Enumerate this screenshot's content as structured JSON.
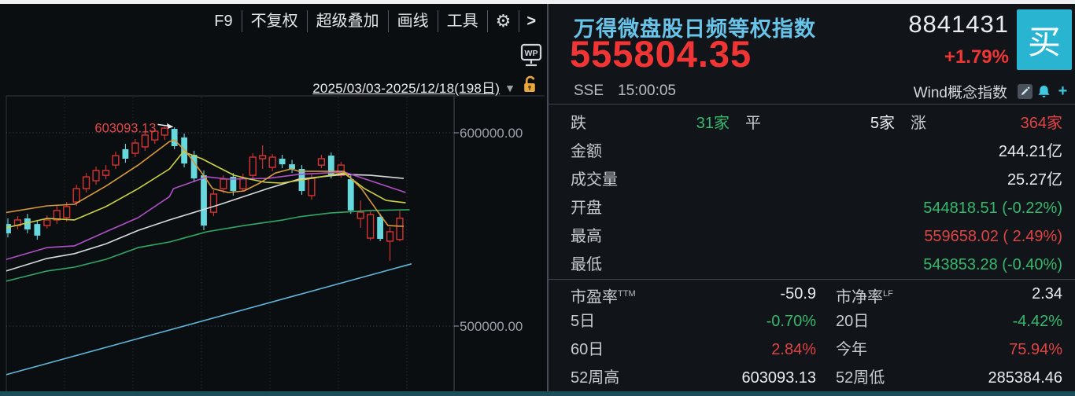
{
  "palette": {
    "bg": "#0b0e11",
    "up_red": "#e04343",
    "down_green": "#35b96d",
    "price_red": "#f13434",
    "title_blue": "#68c4e9",
    "accent_cyan": "#29b4d2"
  },
  "toolbar": {
    "items": [
      "F9",
      "不复权",
      "超级叠加",
      "画线",
      "工具"
    ],
    "gear_icon": "⚙",
    "more_label": ">",
    "wp_badge": "WP"
  },
  "chart_header": {
    "date_range": "2025/03/03-2025/12/18(198日)",
    "dropdown_icon": "▼"
  },
  "chart_data": {
    "type": "candlestick",
    "date_range": "2025/03/03-2025/12/18(198日)",
    "y_axis": {
      "ticks": [
        {
          "value": 600000,
          "label": "600000.00"
        },
        {
          "value": 500000,
          "label": "500000.00"
        }
      ]
    },
    "annotation": {
      "text": "603093.13",
      "value": 603093.13,
      "anchor_index": 16
    },
    "style": {
      "up": "#d93232",
      "down": "#66d9de",
      "bg": "#0b0e11"
    },
    "candles": [
      [
        552800,
        555700,
        545900,
        548000
      ],
      [
        552000,
        556900,
        550000,
        554900
      ],
      [
        555700,
        558100,
        548000,
        550000
      ],
      [
        552800,
        554900,
        544700,
        546800
      ],
      [
        552000,
        557300,
        550400,
        554900
      ],
      [
        554900,
        562200,
        552800,
        559800
      ],
      [
        556100,
        564200,
        554100,
        561800
      ],
      [
        564200,
        573100,
        562200,
        571100
      ],
      [
        571100,
        579200,
        569100,
        577200
      ],
      [
        575200,
        582500,
        573100,
        580500
      ],
      [
        578000,
        583300,
        576000,
        580500
      ],
      [
        583300,
        590200,
        581300,
        588200
      ],
      [
        591500,
        594300,
        584500,
        586600
      ],
      [
        589400,
        596700,
        587400,
        594700
      ],
      [
        592700,
        600800,
        590700,
        598800
      ],
      [
        596300,
        601600,
        594300,
        600800
      ],
      [
        598800,
        603093.13,
        596300,
        602400
      ],
      [
        602000,
        602800,
        591500,
        593100
      ],
      [
        597600,
        599600,
        582100,
        584100
      ],
      [
        588600,
        590700,
        574400,
        576400
      ],
      [
        578000,
        580500,
        549600,
        552000
      ],
      [
        558900,
        570300,
        556900,
        568300
      ],
      [
        571100,
        578000,
        568700,
        576000
      ],
      [
        577200,
        579200,
        567500,
        569900
      ],
      [
        571100,
        578900,
        569500,
        576400
      ],
      [
        578000,
        589400,
        576000,
        587400
      ],
      [
        586600,
        593500,
        581300,
        588200
      ],
      [
        582100,
        589000,
        580100,
        587400
      ],
      [
        586600,
        588600,
        581700,
        583700
      ],
      [
        583700,
        586000,
        579200,
        581300
      ],
      [
        581300,
        583300,
        567900,
        569900
      ],
      [
        567500,
        578500,
        565400,
        576400
      ],
      [
        583300,
        588600,
        581700,
        586600
      ],
      [
        588200,
        589800,
        576400,
        578000
      ],
      [
        578000,
        584900,
        576800,
        583300
      ],
      [
        576000,
        578000,
        558100,
        559800
      ],
      [
        555700,
        565000,
        550800,
        558900
      ],
      [
        545500,
        559400,
        544300,
        557700
      ],
      [
        556500,
        558100,
        543900,
        545100
      ],
      [
        543900,
        551200,
        533700,
        548800
      ],
      [
        544818.51,
        559658.02,
        543853.28,
        555804.35
      ]
    ],
    "overlays": [
      {
        "name": "ma-longterm",
        "color": "#5fb7dc",
        "points": [
          [
            -0.8,
            474000
          ],
          [
            41.2,
            532200
          ]
        ]
      },
      {
        "name": "ma-slow",
        "color": "#2fa866",
        "points": [
          [
            -0.5,
            522800
          ],
          [
            4,
            528500
          ],
          [
            6.8,
            530500
          ],
          [
            10,
            534500
          ],
          [
            13.3,
            540600
          ],
          [
            16.5,
            543500
          ],
          [
            20.3,
            548800
          ],
          [
            24.1,
            552000
          ],
          [
            28.1,
            554900
          ],
          [
            29.7,
            556500
          ],
          [
            32.9,
            558500
          ],
          [
            37,
            559800
          ],
          [
            41,
            560200
          ]
        ]
      },
      {
        "name": "ma-40",
        "color": "#d8dadc",
        "points": [
          [
            -0.5,
            528000
          ],
          [
            4,
            535000
          ],
          [
            6.8,
            537500
          ],
          [
            10,
            542500
          ],
          [
            13.3,
            549500
          ],
          [
            16.5,
            554900
          ],
          [
            21.7,
            563000
          ],
          [
            26.5,
            571100
          ],
          [
            29.7,
            576000
          ],
          [
            34.3,
            578500
          ],
          [
            37,
            578000
          ],
          [
            40.4,
            576400
          ]
        ]
      },
      {
        "name": "ma-20",
        "color": "#b050c8",
        "points": [
          [
            -0.5,
            534000
          ],
          [
            4,
            540600
          ],
          [
            6.8,
            541500
          ],
          [
            10,
            548800
          ],
          [
            13.3,
            556100
          ],
          [
            16.5,
            567000
          ],
          [
            16.9,
            571100
          ],
          [
            20.3,
            577200
          ],
          [
            22.5,
            576000
          ],
          [
            26.5,
            576400
          ],
          [
            29.7,
            578500
          ],
          [
            34.3,
            579700
          ],
          [
            37,
            575200
          ],
          [
            40.6,
            569100
          ]
        ]
      },
      {
        "name": "ma-10",
        "color": "#cdd13e",
        "points": [
          [
            -0.5,
            550500
          ],
          [
            4,
            555700
          ],
          [
            6.8,
            554900
          ],
          [
            10,
            561800
          ],
          [
            13.3,
            571100
          ],
          [
            16.5,
            581300
          ],
          [
            17.9,
            590200
          ],
          [
            19.8,
            586600
          ],
          [
            21.5,
            582100
          ],
          [
            23.1,
            578000
          ],
          [
            24.7,
            576000
          ],
          [
            26.3,
            574400
          ],
          [
            27.9,
            574000
          ],
          [
            29.5,
            575200
          ],
          [
            34.3,
            579200
          ],
          [
            36.4,
            571100
          ],
          [
            38.6,
            565000
          ],
          [
            40.6,
            563800
          ]
        ]
      },
      {
        "name": "ma-5",
        "color": "#d79b3c",
        "points": [
          [
            -0.5,
            558500
          ],
          [
            4,
            562200
          ],
          [
            6.8,
            563000
          ],
          [
            10,
            572400
          ],
          [
            13.3,
            583300
          ],
          [
            16.5,
            595500
          ],
          [
            17,
            596300
          ],
          [
            18.2,
            590200
          ],
          [
            19.8,
            579200
          ],
          [
            20.9,
            571100
          ],
          [
            22.5,
            569100
          ],
          [
            24.1,
            569900
          ],
          [
            25.7,
            574000
          ],
          [
            27.3,
            579200
          ],
          [
            28.9,
            581300
          ],
          [
            29.7,
            580100
          ],
          [
            34.3,
            580100
          ],
          [
            36.1,
            571100
          ],
          [
            37.8,
            558900
          ],
          [
            38.8,
            552000
          ],
          [
            40.4,
            551600
          ]
        ]
      }
    ]
  },
  "quote": {
    "name": "万得微盘股日频等权指数",
    "code": "8841431",
    "last": "555804.35",
    "change_pct": "+1.79%",
    "buy_label": "买",
    "exchange": "SSE",
    "time": "15:00:05",
    "category": "Wind概念指数",
    "breadth": {
      "down_label": "跌",
      "down_value": "31家",
      "flat_label": "平",
      "flat_value": "5家",
      "up_label": "涨",
      "up_value": "364家"
    },
    "rows": [
      {
        "label": "金额",
        "value": "244.21亿"
      },
      {
        "label": "成交量",
        "value": "25.27亿"
      },
      {
        "label": "开盘",
        "value": "544818.51 (-0.22%)"
      },
      {
        "label": "最高",
        "value": "559658.02 ( 2.49%)"
      },
      {
        "label": "最低",
        "value": "543853.28 (-0.40%)"
      }
    ],
    "stat_rows": [
      {
        "l1": "市盈率",
        "s1": "TTM",
        "v1": "-50.9",
        "l2": "市净率",
        "s2": "LF",
        "v2": "2.34"
      },
      {
        "l1": "5日",
        "s1": "",
        "v1": "-0.70%",
        "l2": "20日",
        "s2": "",
        "v2": "-4.42%"
      },
      {
        "l1": "60日",
        "s1": "",
        "v1": "2.84%",
        "l2": "今年",
        "s2": "",
        "v2": "75.94%"
      },
      {
        "l1": "52周高",
        "s1": "",
        "v1": "603093.13",
        "l2": "52周低",
        "s2": "",
        "v2": "285384.46"
      }
    ]
  }
}
